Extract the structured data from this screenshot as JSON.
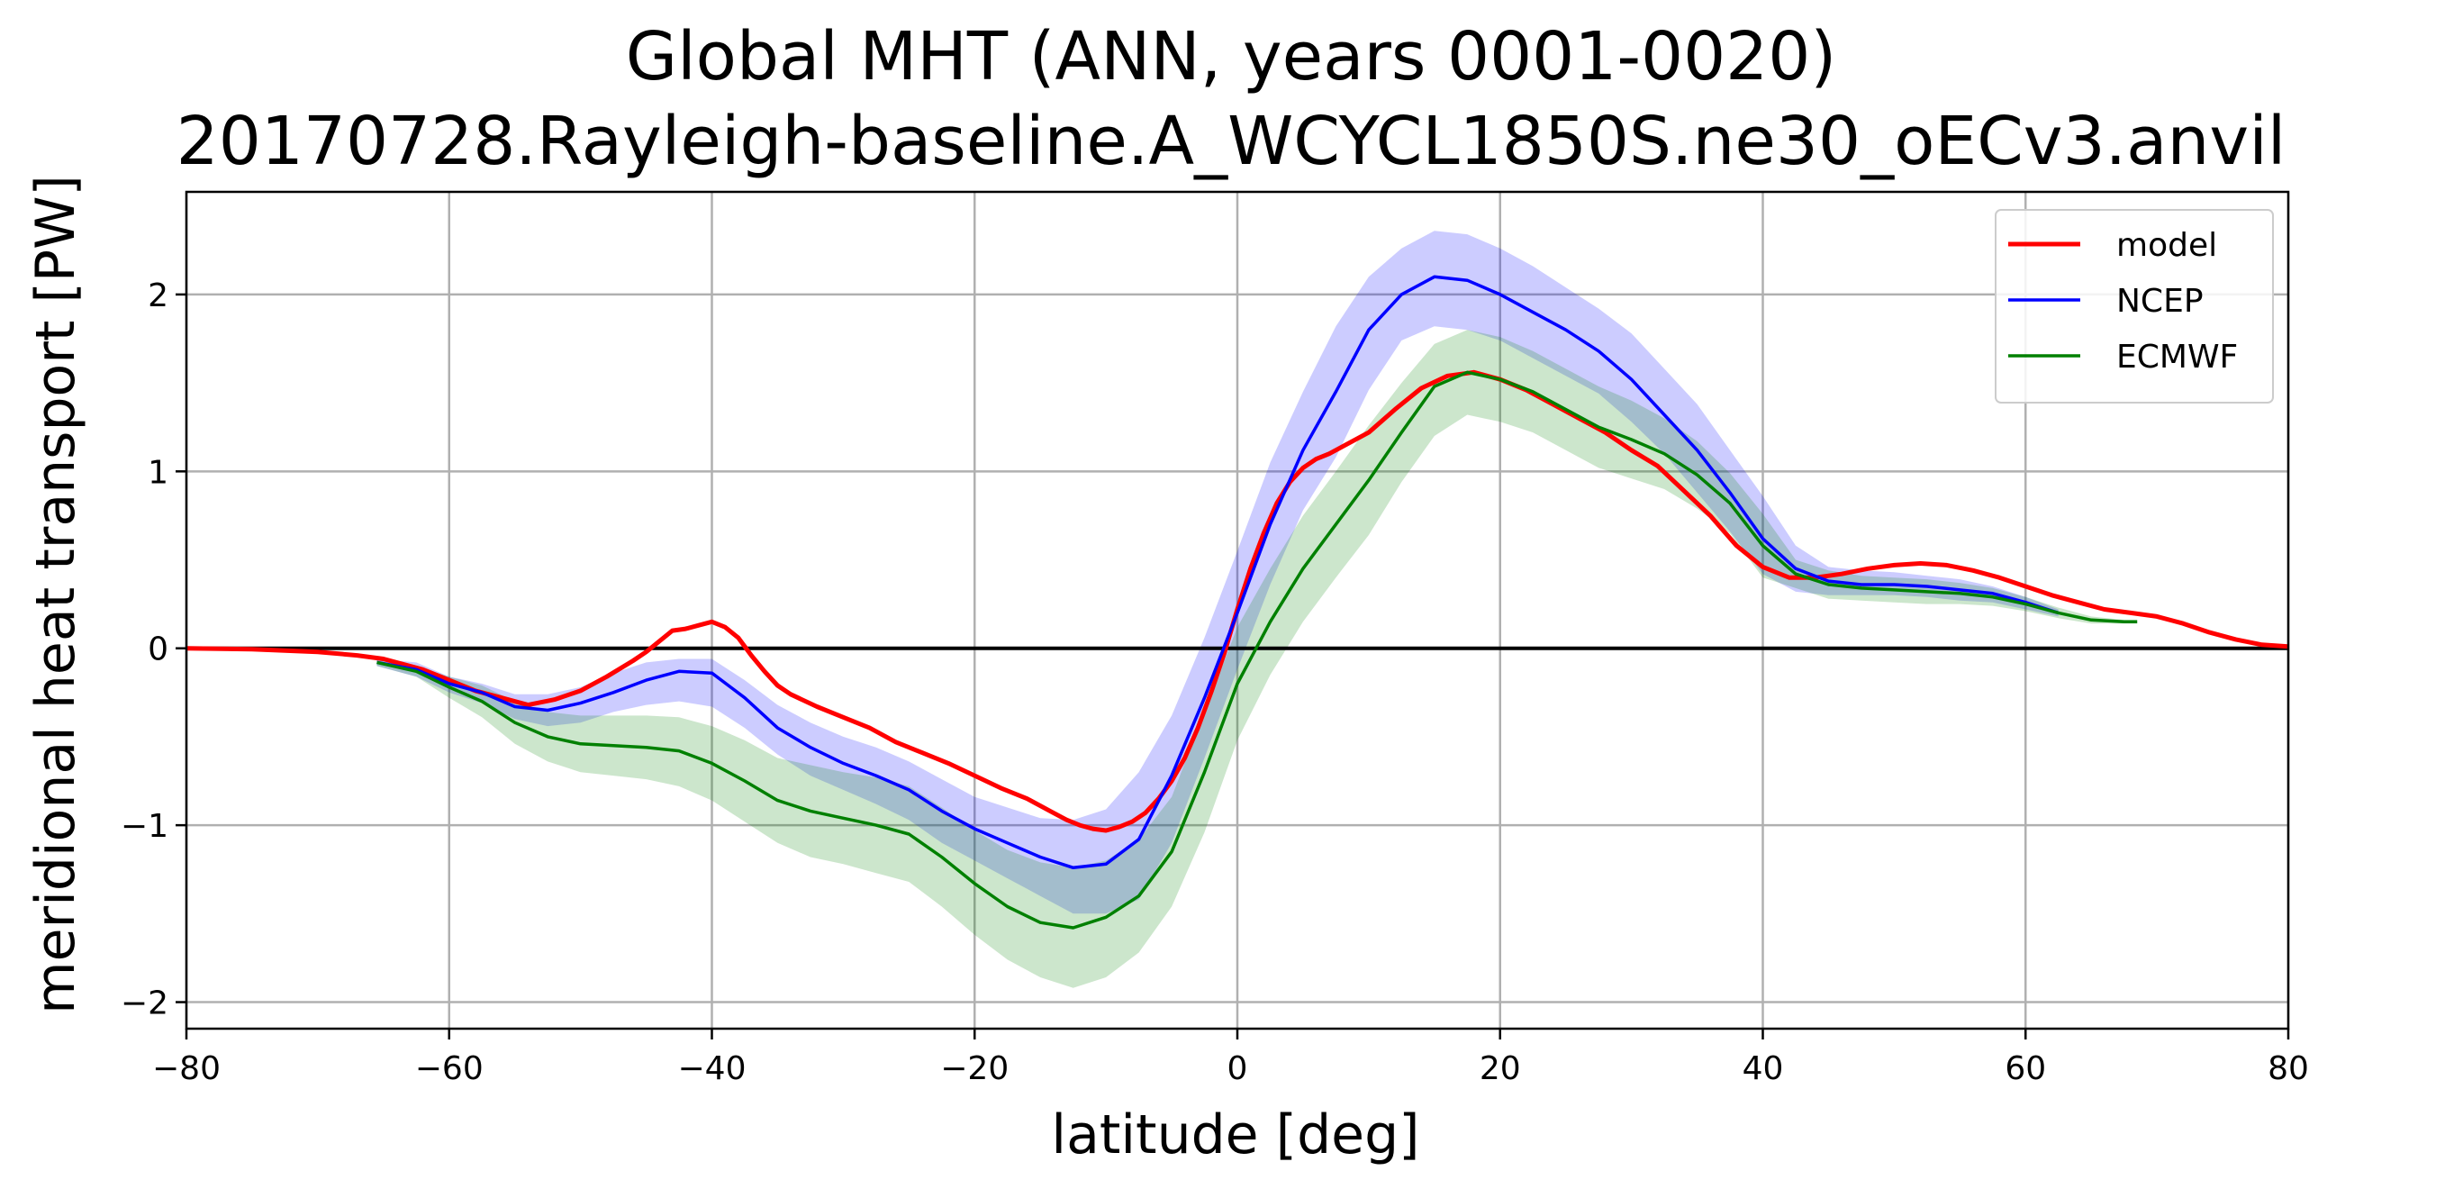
{
  "chart_data": {
    "type": "line",
    "title": "Global MHT (ANN, years 0001-0020)",
    "subtitle": "20170728.Rayleigh-baseline.A_WCYCL1850S.ne30_oECv3.anvil",
    "xlabel": "latitude [deg]",
    "ylabel": "meridional heat transport [PW]",
    "xlim": [
      -80,
      80
    ],
    "ylim": [
      -2.15,
      2.58
    ],
    "xticks": [
      -80,
      -60,
      -40,
      -20,
      0,
      20,
      40,
      60,
      80
    ],
    "yticks": [
      -2,
      -1,
      0,
      1,
      2
    ],
    "xtick_labels": [
      "−80",
      "−60",
      "−40",
      "−20",
      "0",
      "20",
      "40",
      "60",
      "80"
    ],
    "ytick_labels": [
      "−2",
      "−1",
      "0",
      "1",
      "2"
    ],
    "grid": true,
    "zero_line": true,
    "legend_position": "top-right",
    "series": [
      {
        "name": "model",
        "color": "#ff0000",
        "x": [
          -80,
          -75,
          -70,
          -67,
          -65,
          -62,
          -60,
          -58,
          -56,
          -54,
          -52,
          -50,
          -48,
          -46,
          -45,
          -44,
          -43,
          -42,
          -41,
          -40,
          -39,
          -38,
          -37,
          -36,
          -35,
          -34,
          -32,
          -30,
          -28,
          -26,
          -24,
          -22,
          -20,
          -18,
          -16,
          -14,
          -13,
          -12,
          -11,
          -10,
          -9,
          -8,
          -7,
          -6,
          -5,
          -4,
          -3,
          -2,
          -1,
          0,
          1,
          2,
          3,
          4,
          5,
          6,
          7,
          8,
          10,
          12,
          14,
          16,
          18,
          20,
          22,
          24,
          26,
          28,
          30,
          32,
          34,
          36,
          38,
          40,
          42,
          44,
          46,
          48,
          50,
          52,
          54,
          56,
          58,
          60,
          62,
          64,
          66,
          68,
          70,
          72,
          74,
          76,
          78,
          80
        ],
        "y": [
          0.0,
          -0.005,
          -0.02,
          -0.04,
          -0.06,
          -0.12,
          -0.18,
          -0.24,
          -0.28,
          -0.32,
          -0.29,
          -0.24,
          -0.16,
          -0.07,
          -0.02,
          0.04,
          0.1,
          0.11,
          0.13,
          0.15,
          0.12,
          0.06,
          -0.04,
          -0.13,
          -0.21,
          -0.26,
          -0.33,
          -0.39,
          -0.45,
          -0.53,
          -0.59,
          -0.65,
          -0.72,
          -0.79,
          -0.85,
          -0.93,
          -0.97,
          -1.0,
          -1.02,
          -1.03,
          -1.01,
          -0.98,
          -0.93,
          -0.85,
          -0.75,
          -0.62,
          -0.45,
          -0.25,
          -0.03,
          0.22,
          0.45,
          0.65,
          0.82,
          0.94,
          1.02,
          1.07,
          1.1,
          1.14,
          1.22,
          1.35,
          1.47,
          1.54,
          1.56,
          1.52,
          1.46,
          1.38,
          1.3,
          1.22,
          1.12,
          1.03,
          0.89,
          0.75,
          0.58,
          0.46,
          0.4,
          0.4,
          0.42,
          0.45,
          0.47,
          0.48,
          0.47,
          0.44,
          0.4,
          0.35,
          0.3,
          0.26,
          0.22,
          0.2,
          0.18,
          0.14,
          0.09,
          0.05,
          0.02,
          0.01
        ]
      },
      {
        "name": "NCEP",
        "color": "#0000ff",
        "x": [
          -65.5,
          -62.5,
          -60,
          -57.5,
          -55,
          -52.5,
          -50,
          -47.5,
          -45,
          -42.5,
          -40,
          -37.5,
          -35,
          -32.5,
          -30,
          -27.5,
          -25,
          -22.5,
          -20,
          -17.5,
          -15,
          -12.5,
          -10,
          -7.5,
          -5,
          -2.5,
          0,
          2.5,
          5,
          7.5,
          10,
          12.5,
          15,
          17.5,
          20,
          22.5,
          25,
          27.5,
          30,
          32.5,
          35,
          37.5,
          40,
          42.5,
          45,
          47.5,
          50,
          52.5,
          55,
          57.5,
          60,
          62.5
        ],
        "y": [
          -0.08,
          -0.12,
          -0.2,
          -0.25,
          -0.33,
          -0.35,
          -0.31,
          -0.25,
          -0.18,
          -0.13,
          -0.14,
          -0.28,
          -0.45,
          -0.56,
          -0.65,
          -0.72,
          -0.8,
          -0.92,
          -1.02,
          -1.1,
          -1.18,
          -1.24,
          -1.22,
          -1.08,
          -0.72,
          -0.28,
          0.2,
          0.7,
          1.12,
          1.45,
          1.8,
          2.0,
          2.1,
          2.08,
          2.0,
          1.9,
          1.8,
          1.68,
          1.52,
          1.32,
          1.12,
          0.88,
          0.62,
          0.45,
          0.38,
          0.36,
          0.36,
          0.35,
          0.33,
          0.31,
          0.26,
          0.2
        ]
      },
      {
        "name": "ECMWF",
        "color": "#008000",
        "x": [
          -65.5,
          -62.5,
          -60,
          -57.5,
          -55,
          -52.5,
          -50,
          -47.5,
          -45,
          -42.5,
          -40,
          -37.5,
          -35,
          -32.5,
          -30,
          -27.5,
          -25,
          -22.5,
          -20,
          -17.5,
          -15,
          -12.5,
          -10,
          -7.5,
          -5,
          -2.5,
          0,
          2.5,
          5,
          7.5,
          10,
          12.5,
          15,
          17.5,
          20,
          22.5,
          25,
          27.5,
          30,
          32.5,
          35,
          37.5,
          40,
          42.5,
          45,
          47.5,
          50,
          52.5,
          55,
          57.5,
          60,
          62.5,
          65,
          67.5,
          68.5
        ],
        "y": [
          -0.08,
          -0.13,
          -0.22,
          -0.3,
          -0.42,
          -0.5,
          -0.54,
          -0.55,
          -0.56,
          -0.58,
          -0.65,
          -0.75,
          -0.86,
          -0.92,
          -0.96,
          -1.0,
          -1.05,
          -1.18,
          -1.33,
          -1.46,
          -1.55,
          -1.58,
          -1.52,
          -1.4,
          -1.15,
          -0.7,
          -0.2,
          0.15,
          0.45,
          0.7,
          0.95,
          1.22,
          1.48,
          1.56,
          1.52,
          1.45,
          1.35,
          1.25,
          1.18,
          1.1,
          0.98,
          0.82,
          0.58,
          0.42,
          0.36,
          0.34,
          0.33,
          0.32,
          0.31,
          0.29,
          0.25,
          0.2,
          0.16,
          0.15,
          0.15
        ]
      }
    ],
    "bands": [
      {
        "name": "NCEP",
        "color": "#0000ff",
        "opacity": 0.2,
        "x": [
          -65.5,
          -62.5,
          -60,
          -57.5,
          -55,
          -52.5,
          -50,
          -47.5,
          -45,
          -42.5,
          -40,
          -37.5,
          -35,
          -32.5,
          -30,
          -27.5,
          -25,
          -22.5,
          -20,
          -17.5,
          -15,
          -12.5,
          -10,
          -7.5,
          -5,
          -2.5,
          0,
          2.5,
          5,
          7.5,
          10,
          12.5,
          15,
          17.5,
          20,
          22.5,
          25,
          27.5,
          30,
          32.5,
          35,
          37.5,
          40,
          42.5,
          45,
          47.5,
          50,
          52.5,
          55,
          57.5,
          60,
          62.5
        ],
        "upper": [
          -0.06,
          -0.08,
          -0.16,
          -0.2,
          -0.26,
          -0.26,
          -0.22,
          -0.14,
          -0.08,
          -0.06,
          -0.06,
          -0.18,
          -0.32,
          -0.42,
          -0.5,
          -0.56,
          -0.64,
          -0.74,
          -0.84,
          -0.9,
          -0.96,
          -0.97,
          -0.91,
          -0.7,
          -0.38,
          0.06,
          0.55,
          1.05,
          1.45,
          1.82,
          2.1,
          2.26,
          2.36,
          2.34,
          2.26,
          2.16,
          2.04,
          1.92,
          1.78,
          1.58,
          1.38,
          1.12,
          0.86,
          0.58,
          0.46,
          0.44,
          0.43,
          0.41,
          0.39,
          0.35,
          0.29,
          0.22
        ],
        "lower": [
          -0.1,
          -0.16,
          -0.25,
          -0.31,
          -0.4,
          -0.44,
          -0.42,
          -0.36,
          -0.32,
          -0.3,
          -0.33,
          -0.45,
          -0.6,
          -0.72,
          -0.8,
          -0.88,
          -0.97,
          -1.1,
          -1.2,
          -1.3,
          -1.4,
          -1.5,
          -1.5,
          -1.42,
          -1.1,
          -0.62,
          -0.12,
          0.36,
          0.78,
          1.08,
          1.46,
          1.74,
          1.82,
          1.8,
          1.74,
          1.64,
          1.54,
          1.44,
          1.28,
          1.1,
          0.88,
          0.66,
          0.42,
          0.32,
          0.3,
          0.3,
          0.3,
          0.29,
          0.27,
          0.26,
          0.22,
          0.18
        ]
      },
      {
        "name": "ECMWF",
        "color": "#008000",
        "opacity": 0.2,
        "x": [
          -65.5,
          -62.5,
          -60,
          -57.5,
          -55,
          -52.5,
          -50,
          -47.5,
          -45,
          -42.5,
          -40,
          -37.5,
          -35,
          -32.5,
          -30,
          -27.5,
          -25,
          -22.5,
          -20,
          -17.5,
          -15,
          -12.5,
          -10,
          -7.5,
          -5,
          -2.5,
          0,
          2.5,
          5,
          7.5,
          10,
          12.5,
          15,
          17.5,
          20,
          22.5,
          25,
          27.5,
          30,
          32.5,
          35,
          37.5,
          40,
          42.5,
          45,
          47.5,
          50,
          52.5,
          55,
          57.5,
          60,
          62.5,
          65,
          67.5,
          68.5
        ],
        "upper": [
          -0.06,
          -0.1,
          -0.16,
          -0.21,
          -0.3,
          -0.36,
          -0.38,
          -0.38,
          -0.38,
          -0.39,
          -0.44,
          -0.52,
          -0.62,
          -0.66,
          -0.7,
          -0.73,
          -0.78,
          -0.9,
          -1.03,
          -1.14,
          -1.21,
          -1.24,
          -1.2,
          -1.08,
          -0.84,
          -0.36,
          0.12,
          0.45,
          0.75,
          1.0,
          1.26,
          1.5,
          1.72,
          1.8,
          1.76,
          1.68,
          1.58,
          1.48,
          1.4,
          1.3,
          1.17,
          0.99,
          0.76,
          0.5,
          0.44,
          0.41,
          0.4,
          0.39,
          0.37,
          0.34,
          0.29,
          0.23,
          0.18,
          0.16,
          0.16
        ],
        "lower": [
          -0.1,
          -0.16,
          -0.28,
          -0.39,
          -0.54,
          -0.64,
          -0.7,
          -0.72,
          -0.74,
          -0.78,
          -0.86,
          -0.98,
          -1.1,
          -1.18,
          -1.22,
          -1.27,
          -1.32,
          -1.46,
          -1.62,
          -1.76,
          -1.86,
          -1.92,
          -1.86,
          -1.72,
          -1.46,
          -1.04,
          -0.52,
          -0.15,
          0.15,
          0.4,
          0.64,
          0.94,
          1.2,
          1.32,
          1.28,
          1.22,
          1.12,
          1.02,
          0.96,
          0.9,
          0.79,
          0.65,
          0.4,
          0.34,
          0.28,
          0.27,
          0.26,
          0.25,
          0.25,
          0.24,
          0.21,
          0.17,
          0.14,
          0.14,
          0.14
        ]
      }
    ]
  }
}
